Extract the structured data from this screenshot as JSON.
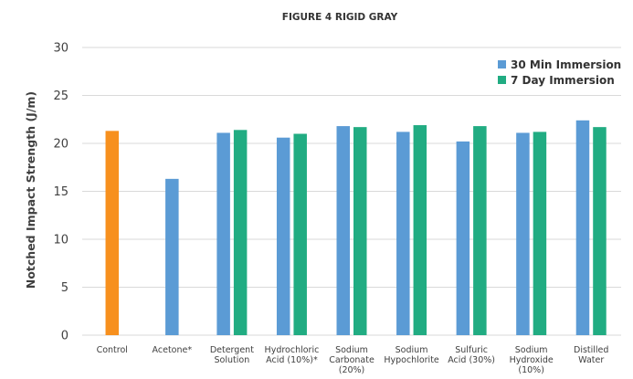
{
  "chart_data": {
    "type": "bar",
    "title": "FIGURE 4 RIGID GRAY",
    "ylabel": "Notched Impact Strength (J/m)",
    "xlabel": "",
    "ylim": [
      0,
      30
    ],
    "yticks": [
      0,
      5,
      10,
      15,
      20,
      25,
      30
    ],
    "grid": true,
    "legend_position": "top-right",
    "categories": [
      [
        "Control"
      ],
      [
        "Acetone*"
      ],
      [
        "Detergent",
        "Solution"
      ],
      [
        "Hydrochloric",
        "Acid (10%)*"
      ],
      [
        "Sodium",
        "Carbonate",
        "(20%)"
      ],
      [
        "Sodium",
        "Hypochlorite"
      ],
      [
        "Sulfuric",
        "Acid (30%)"
      ],
      [
        "Sodium",
        "Hydroxide",
        "(10%)"
      ],
      [
        "Distilled",
        "Water"
      ]
    ],
    "control": {
      "value": 21.3,
      "color": "#f7901e"
    },
    "series": [
      {
        "name": "30 Min Immersion",
        "color": "#5b9bd5",
        "values": [
          null,
          16.3,
          21.1,
          20.6,
          21.8,
          21.2,
          20.2,
          21.1,
          22.4
        ]
      },
      {
        "name": "7 Day Immersion",
        "color": "#21ac82",
        "values": [
          null,
          null,
          21.4,
          21.0,
          21.7,
          21.9,
          21.8,
          21.2,
          21.7
        ]
      }
    ]
  }
}
